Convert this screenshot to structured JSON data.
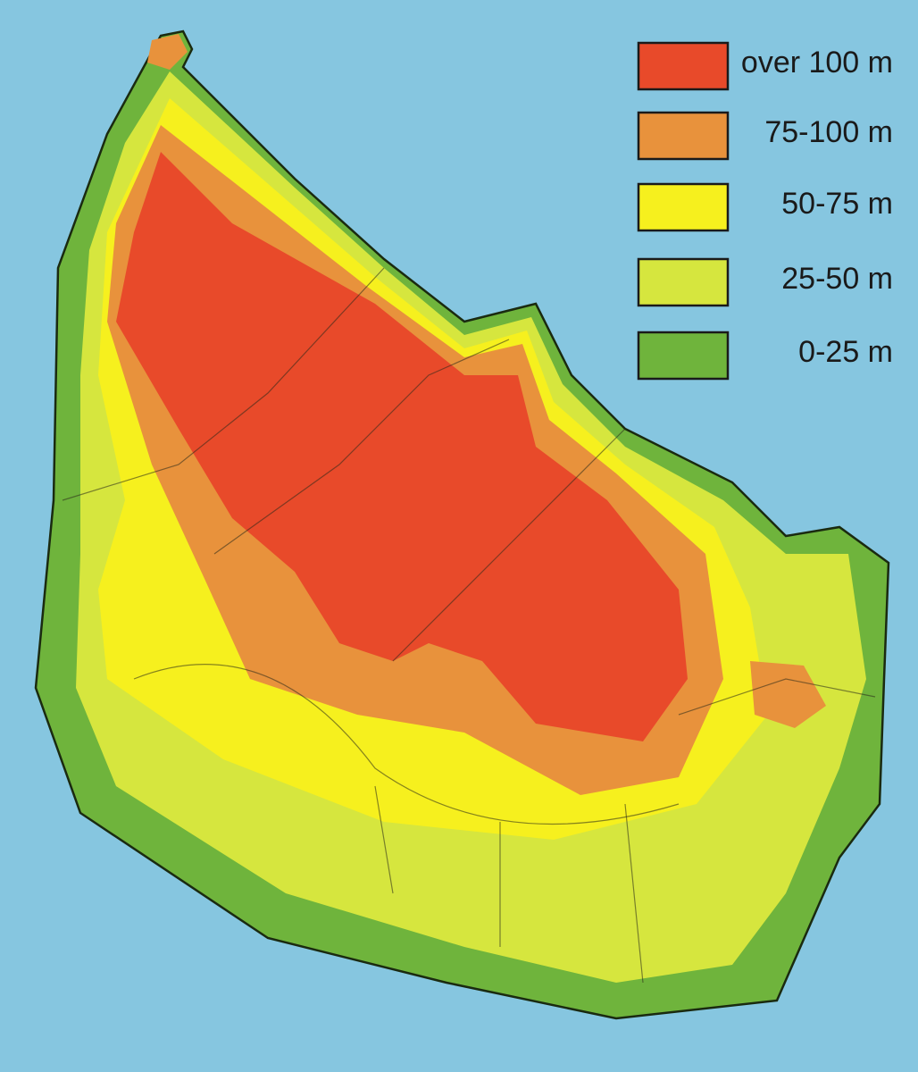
{
  "legend": {
    "items": [
      {
        "label": "over 100 m",
        "color": "#e84a2a"
      },
      {
        "label": "75-100 m",
        "color": "#e8923c"
      },
      {
        "label": "50-75 m",
        "color": "#f6f01e"
      },
      {
        "label": "25-50 m",
        "color": "#d6e63e"
      },
      {
        "label": "0-25 m",
        "color": "#6fb43c"
      }
    ]
  }
}
